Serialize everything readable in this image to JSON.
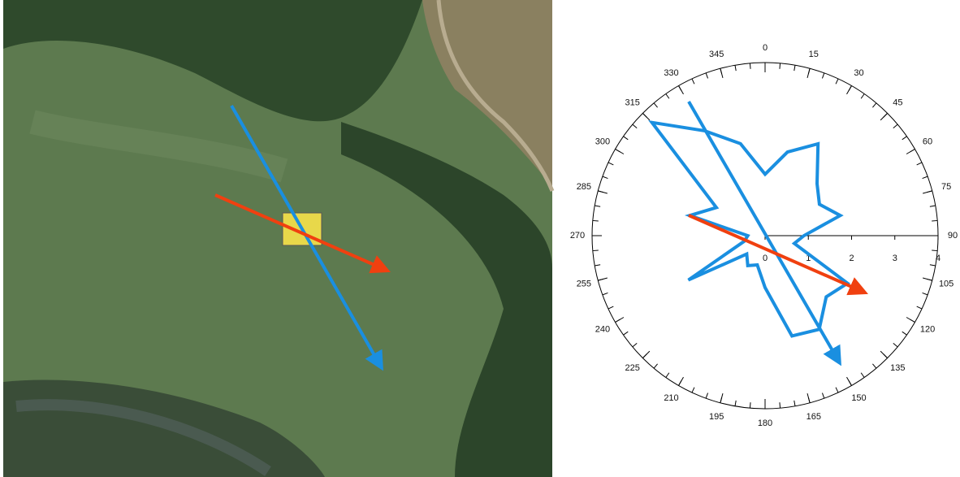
{
  "chart_data": {
    "type": "rose",
    "x": [
      0,
      15,
      30,
      45,
      60,
      75,
      90,
      105,
      120,
      135,
      150,
      165,
      180,
      195,
      210,
      225,
      240,
      255,
      270,
      285,
      300,
      315,
      330,
      345
    ],
    "values": [
      1.42,
      2.0,
      2.45,
      1.7,
      1.45,
      1.8,
      0.9,
      0.7,
      2.2,
      2.0,
      2.5,
      2.4,
      1.2,
      0.7,
      0.8,
      0.6,
      2.05,
      0.5,
      0.4,
      1.8,
      1.3,
      3.7,
      2.8,
      2.2
    ],
    "color": "#1a8fe0",
    "angle_ticks": [
      0,
      15,
      30,
      45,
      60,
      75,
      90,
      105,
      120,
      135,
      150,
      165,
      180,
      195,
      210,
      225,
      240,
      255,
      270,
      285,
      300,
      315,
      330,
      345
    ],
    "rlim": [
      0,
      4
    ],
    "rticks": [
      0,
      1,
      2,
      3,
      4
    ]
  }
}
